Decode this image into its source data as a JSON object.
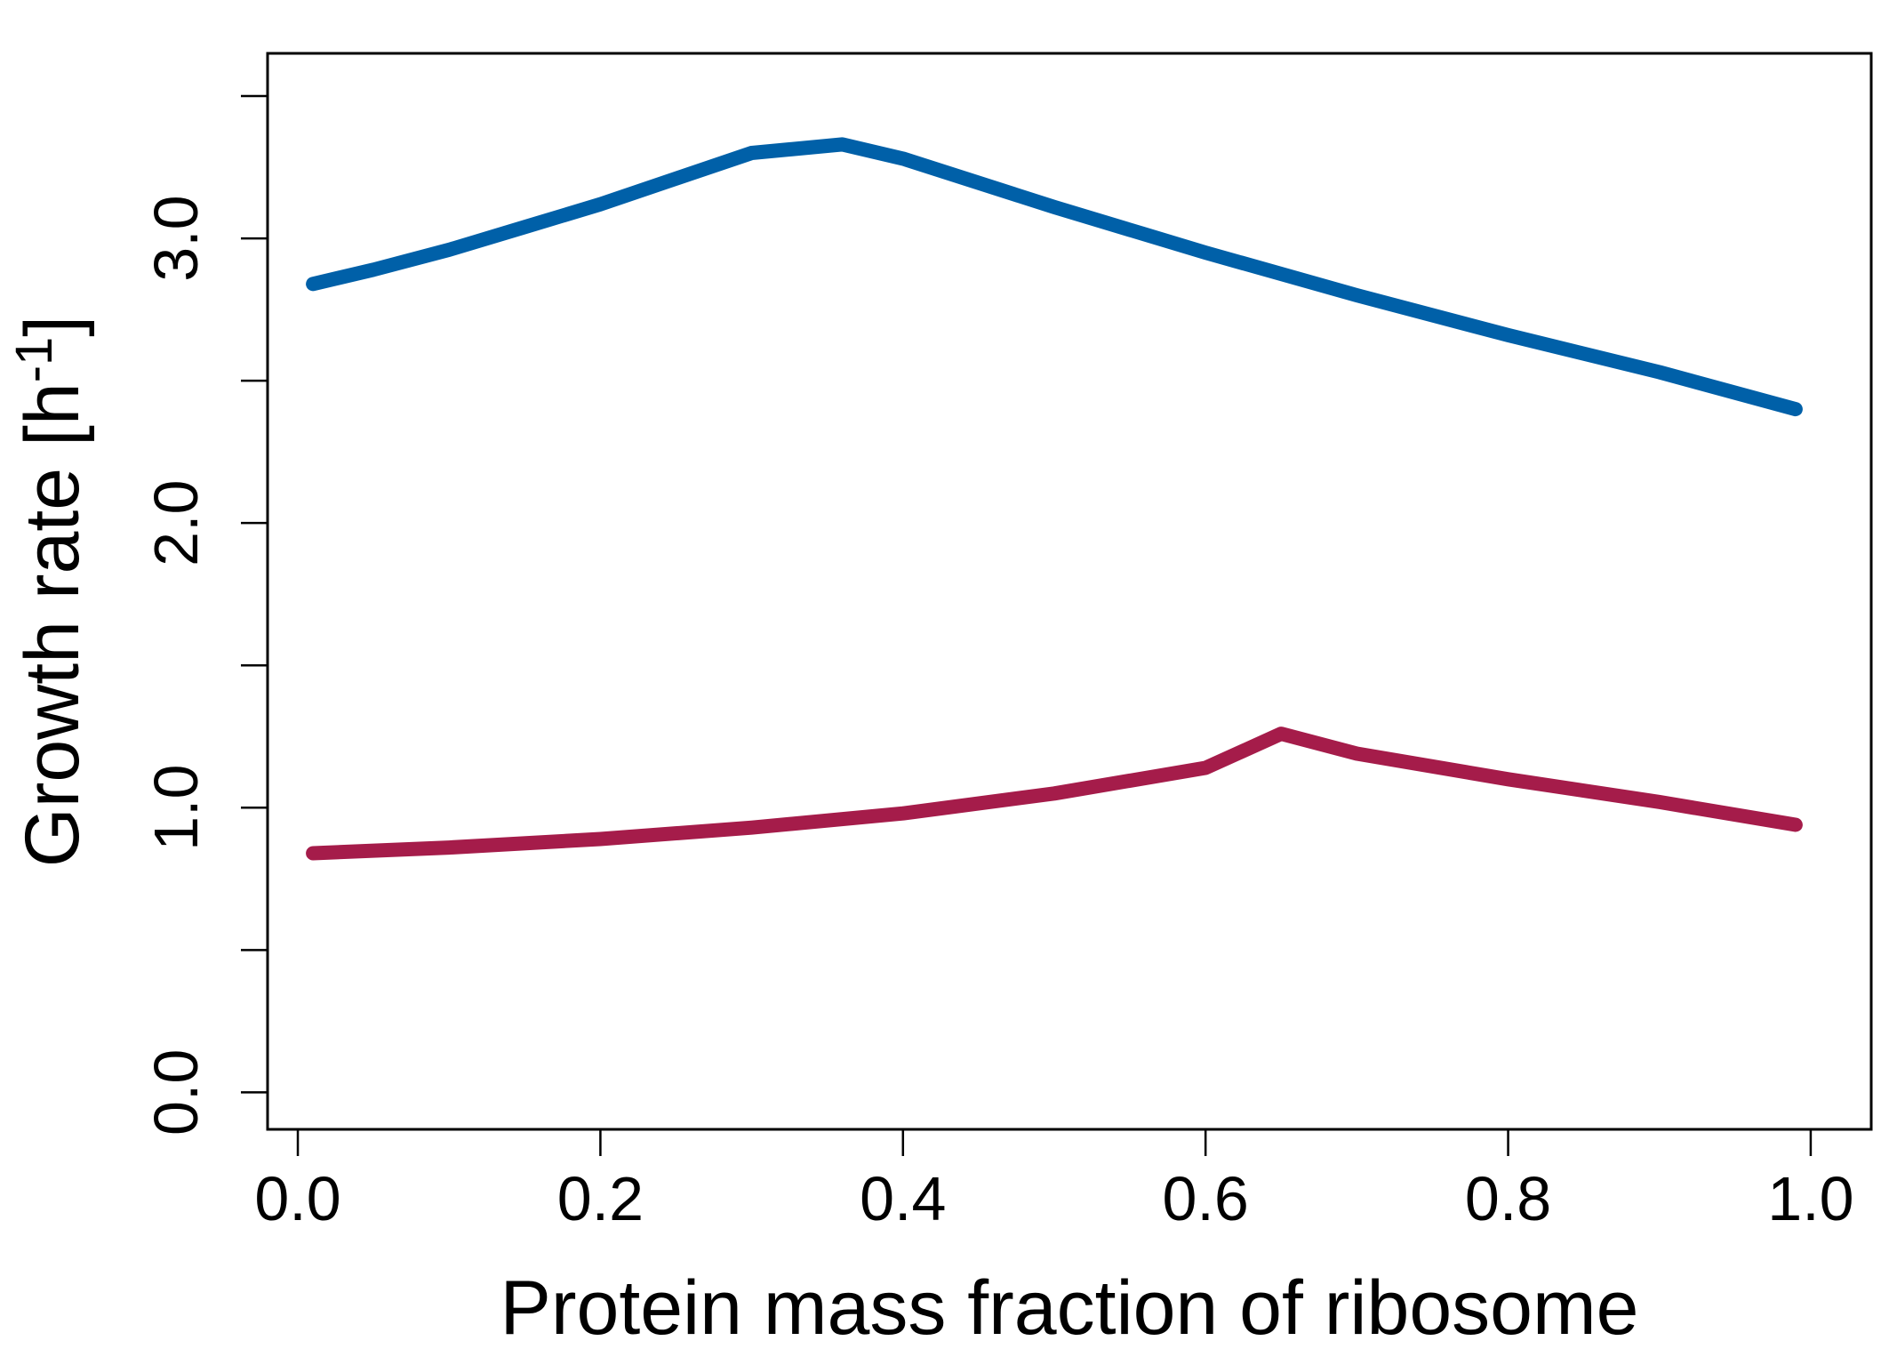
{
  "chart_data": {
    "type": "line",
    "title": "",
    "xlabel": "Protein mass fraction of ribosome",
    "ylabel": "Growth rate [h",
    "ylabel_sup": "-1",
    "ylabel_close": "]",
    "xlim": [
      -0.02,
      1.04
    ],
    "ylim": [
      -0.13,
      3.65
    ],
    "x_ticks": [
      0.0,
      0.2,
      0.4,
      0.6,
      0.8,
      1.0
    ],
    "x_tick_labels": [
      "0.0",
      "0.2",
      "0.4",
      "0.6",
      "0.8",
      "1.0"
    ],
    "y_ticks": [
      0.0,
      0.5,
      1.0,
      1.5,
      2.0,
      2.5,
      3.0,
      3.5
    ],
    "y_tick_labels": [
      "0.0",
      "",
      "1.0",
      "",
      "2.0",
      "",
      "3.0",
      ""
    ],
    "grid": false,
    "legend": "none",
    "series": [
      {
        "color": "#0060a8",
        "x": [
          0.01,
          0.05,
          0.1,
          0.15,
          0.2,
          0.25,
          0.3,
          0.36,
          0.4,
          0.5,
          0.6,
          0.7,
          0.8,
          0.9,
          0.99
        ],
        "y": [
          2.84,
          2.89,
          2.96,
          3.04,
          3.12,
          3.21,
          3.3,
          3.33,
          3.28,
          3.11,
          2.95,
          2.8,
          2.66,
          2.53,
          2.4
        ]
      },
      {
        "color": "#a51c4a",
        "x": [
          0.01,
          0.1,
          0.2,
          0.3,
          0.4,
          0.5,
          0.6,
          0.65,
          0.7,
          0.8,
          0.9,
          0.99
        ],
        "y": [
          0.84,
          0.86,
          0.89,
          0.93,
          0.98,
          1.05,
          1.14,
          1.26,
          1.19,
          1.1,
          1.02,
          0.94
        ]
      }
    ]
  }
}
